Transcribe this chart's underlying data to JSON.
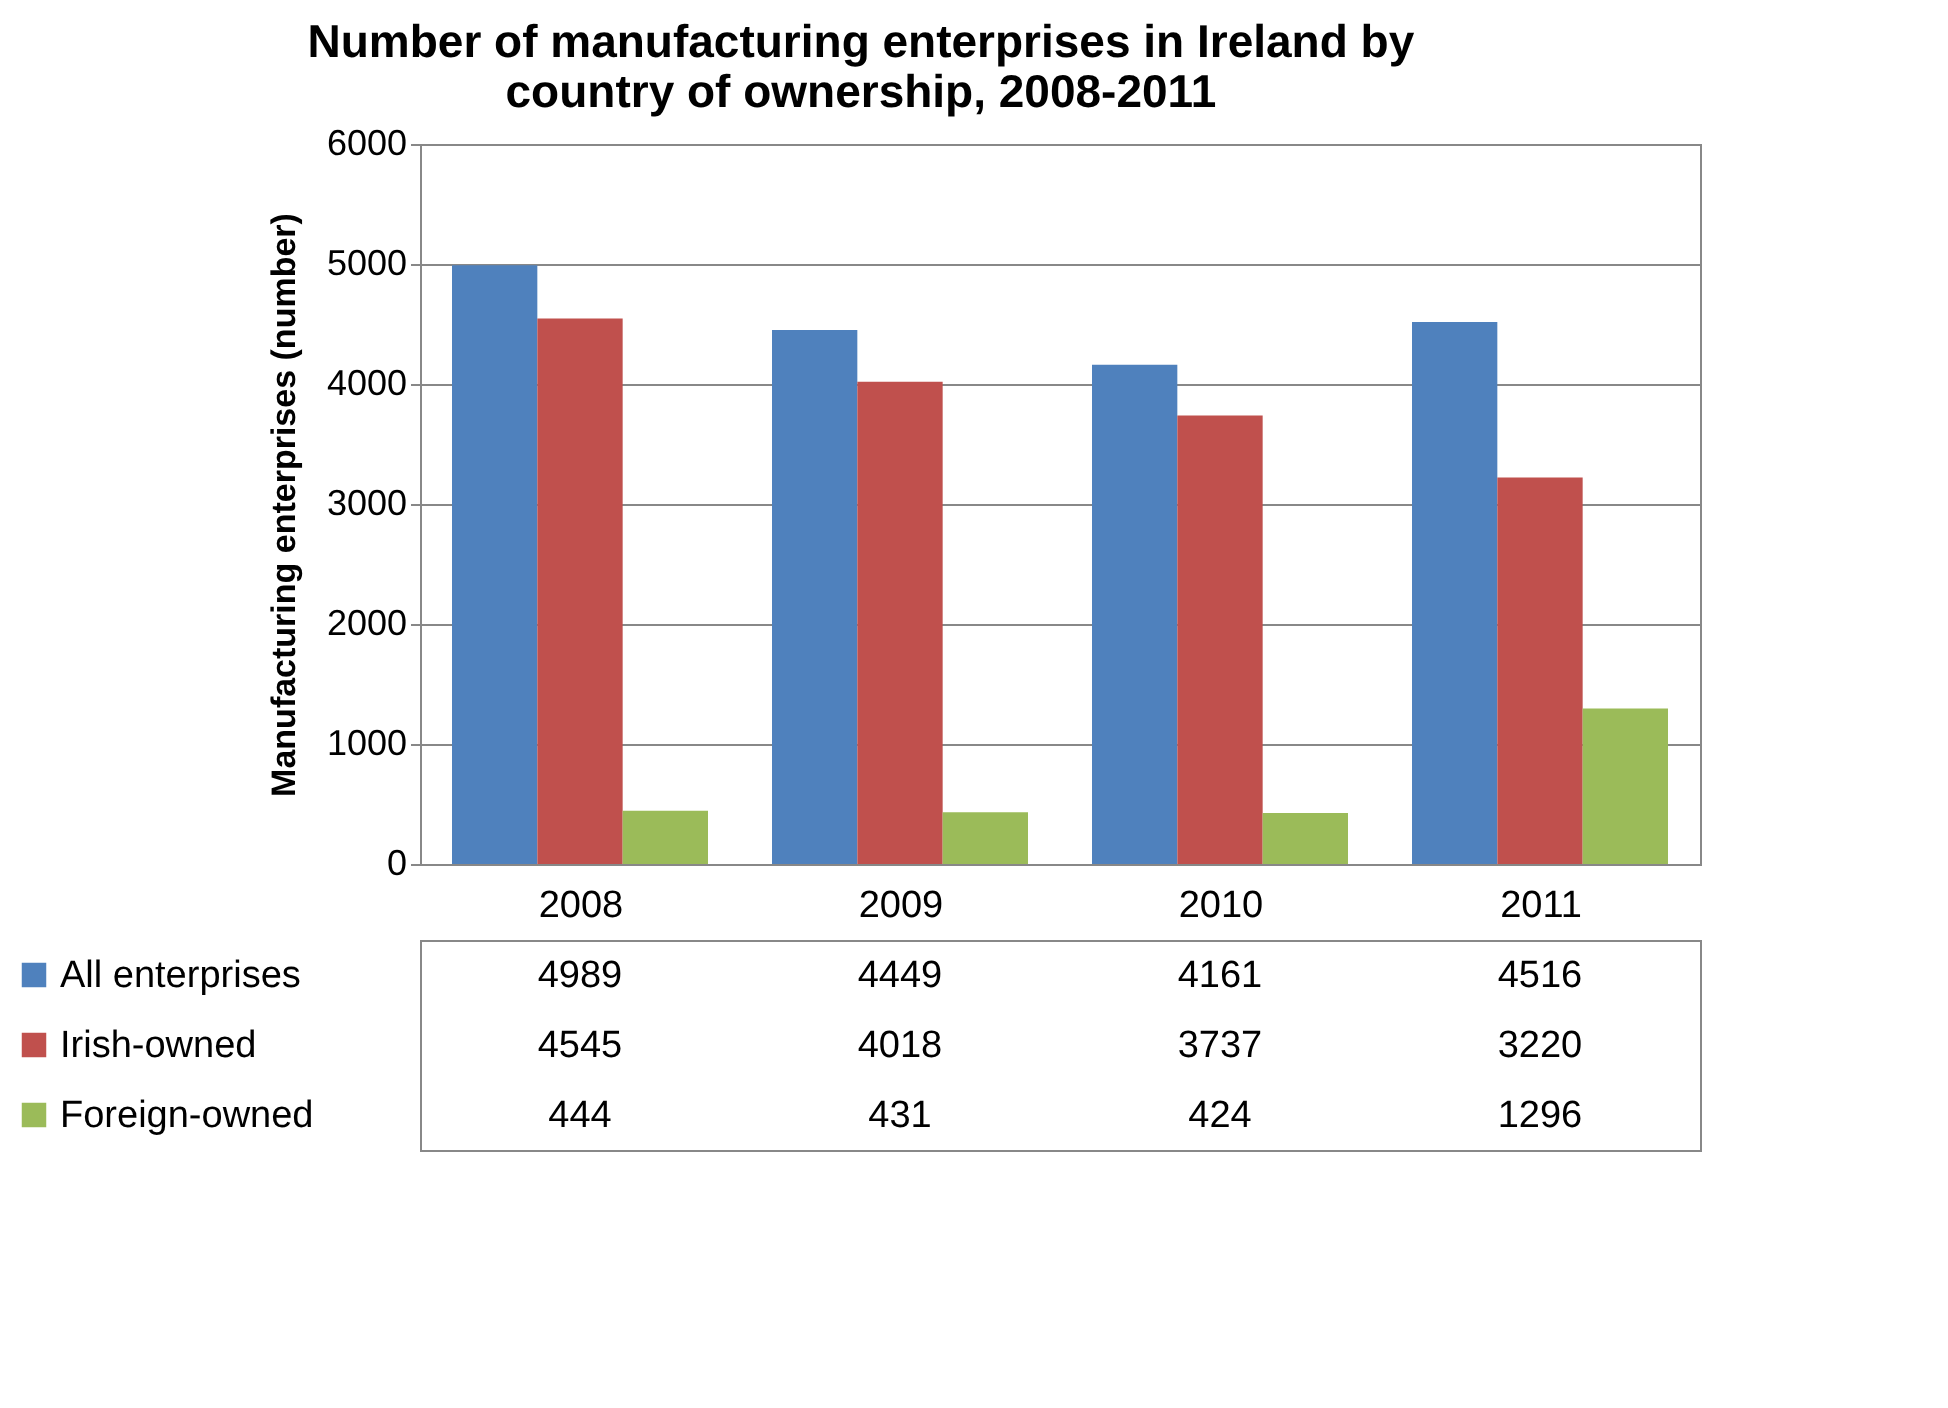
{
  "chart_data": {
    "type": "bar",
    "title": "Number of manufacturing enterprises in Ireland by country of ownership, 2008-2011",
    "ylabel": "Manufacturing enterprises (number)",
    "categories": [
      "2008",
      "2009",
      "2010",
      "2011"
    ],
    "series": [
      {
        "name": "All enterprises",
        "color": "#4f81bd",
        "values": [
          4989,
          4449,
          4161,
          4516
        ]
      },
      {
        "name": "Irish-owned",
        "color": "#c0504d",
        "values": [
          4545,
          4018,
          3737,
          3220
        ]
      },
      {
        "name": "Foreign-owned",
        "color": "#9bbb59",
        "values": [
          444,
          431,
          424,
          1296
        ]
      }
    ],
    "ylim": [
      0,
      6000
    ],
    "yticks": [
      0,
      1000,
      2000,
      3000,
      4000,
      5000,
      6000
    ],
    "grid": "y",
    "data_labels": true,
    "legend": "bottom"
  }
}
